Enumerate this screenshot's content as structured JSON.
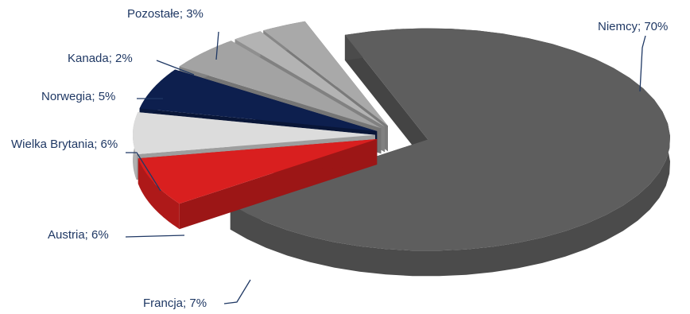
{
  "chart_data": {
    "type": "pie",
    "categories": [
      "Niemcy",
      "Francja",
      "Austria",
      "Wielka Brytania",
      "Norwegia",
      "Kanada",
      "Pozostałe"
    ],
    "values": [
      70,
      7,
      6,
      6,
      5,
      2,
      3
    ],
    "value_labels": [
      "Niemcy; 70%",
      "Francja; 7%",
      "Austria; 6%",
      "Wielka Brytania; 6%",
      "Norwegia; 5%",
      "Kanada; 2%",
      "Pozostałe; 3%"
    ],
    "colors": [
      "#5e5e5e",
      "#d91f1f",
      "#dcdcdc",
      "#0d1f4e",
      "#a3a3a3",
      "#b3b3b3",
      "#a9a9a9"
    ]
  }
}
